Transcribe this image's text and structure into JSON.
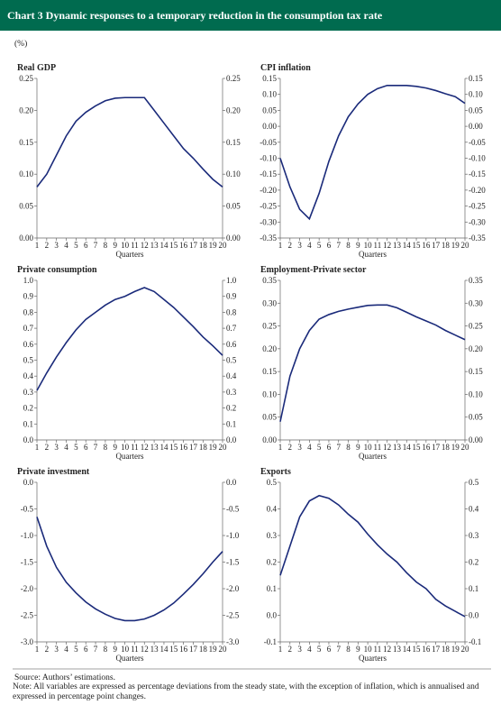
{
  "header": {
    "title": "Chart 3 Dynamic responses to a temporary reduction in the consumption tax rate",
    "unit": "(%)"
  },
  "footer": {
    "source": "Source: Authors’ estimations.",
    "note": "Note: All variables are expressed as percentage deviations from the steady state, with the exception of inflation, which is annualised and expressed in percentage point changes."
  },
  "chart_data": [
    {
      "type": "line",
      "title": "Real GDP",
      "xlabel": "Quarters",
      "color": "#1a2a7a",
      "x": [
        1,
        2,
        3,
        4,
        5,
        6,
        7,
        8,
        9,
        10,
        11,
        12,
        13,
        14,
        15,
        16,
        17,
        18,
        19,
        20
      ],
      "values": [
        0.08,
        0.1,
        0.13,
        0.16,
        0.183,
        0.197,
        0.207,
        0.215,
        0.219,
        0.22,
        0.22,
        0.22,
        0.2,
        0.18,
        0.16,
        0.14,
        0.125,
        0.108,
        0.092,
        0.08
      ],
      "xlim": [
        1,
        20
      ],
      "xticks": [
        1,
        2,
        3,
        4,
        5,
        6,
        7,
        8,
        9,
        10,
        11,
        12,
        13,
        14,
        15,
        16,
        17,
        18,
        19,
        20
      ],
      "ylim": [
        0,
        0.25
      ],
      "yticks": [
        {
          "value": 0,
          "label": "0.00"
        },
        0.05,
        {
          "value": 0.1,
          "label": "0.10"
        },
        0.15,
        {
          "value": 0.2,
          "label": "0.20"
        },
        0.25
      ]
    },
    {
      "type": "line",
      "title": "CPI inflation",
      "xlabel": "Quarters",
      "color": "#1a2a7a",
      "x": [
        1,
        2,
        3,
        4,
        5,
        6,
        7,
        8,
        9,
        10,
        11,
        12,
        13,
        14,
        15,
        16,
        17,
        18,
        19,
        20
      ],
      "values": [
        -0.1,
        -0.19,
        -0.26,
        -0.29,
        -0.21,
        -0.11,
        -0.03,
        0.03,
        0.07,
        0.1,
        0.118,
        0.128,
        0.128,
        0.128,
        0.125,
        0.12,
        0.112,
        0.102,
        0.093,
        0.072
      ],
      "xlim": [
        1,
        20
      ],
      "xticks": [
        1,
        2,
        3,
        4,
        5,
        6,
        7,
        8,
        9,
        10,
        11,
        12,
        13,
        14,
        15,
        16,
        17,
        18,
        19,
        20
      ],
      "ylim": [
        -0.35,
        0.15
      ],
      "yticks": [
        -0.35,
        {
          "value": -0.3,
          "label": "-0.30"
        },
        -0.25,
        {
          "value": -0.2,
          "label": "-0.20"
        },
        -0.15,
        {
          "value": -0.1,
          "label": "-0.10"
        },
        -0.05,
        {
          "value": 0,
          "label": "0.00"
        },
        0.05,
        {
          "value": 0.1,
          "label": "0.10"
        },
        0.15
      ]
    },
    {
      "type": "line",
      "title": "Private consumption",
      "xlabel": "Quarters",
      "color": "#1a2a7a",
      "x": [
        1,
        2,
        3,
        4,
        5,
        6,
        7,
        8,
        9,
        10,
        11,
        12,
        13,
        14,
        15,
        16,
        17,
        18,
        19,
        20
      ],
      "values": [
        0.31,
        0.42,
        0.52,
        0.61,
        0.69,
        0.755,
        0.8,
        0.845,
        0.88,
        0.9,
        0.93,
        0.955,
        0.93,
        0.88,
        0.83,
        0.77,
        0.71,
        0.645,
        0.59,
        0.53
      ],
      "xlim": [
        1,
        20
      ],
      "xticks": [
        1,
        2,
        3,
        4,
        5,
        6,
        7,
        8,
        9,
        10,
        11,
        12,
        13,
        14,
        15,
        16,
        17,
        18,
        19,
        20
      ],
      "ylim": [
        0,
        1
      ],
      "yticks": [
        {
          "value": 0,
          "label": "0.0"
        },
        0.1,
        0.2,
        0.3,
        0.4,
        0.5,
        0.6,
        0.7,
        0.8,
        0.9,
        {
          "value": 1,
          "label": "1.0"
        }
      ]
    },
    {
      "type": "line",
      "title": "Employment-Private sector",
      "xlabel": "Quarters",
      "color": "#1a2a7a",
      "x": [
        1,
        2,
        3,
        4,
        5,
        6,
        7,
        8,
        9,
        10,
        11,
        12,
        13,
        14,
        15,
        16,
        17,
        18,
        19,
        20
      ],
      "values": [
        0.04,
        0.14,
        0.2,
        0.24,
        0.265,
        0.275,
        0.282,
        0.287,
        0.291,
        0.295,
        0.296,
        0.296,
        0.29,
        0.28,
        0.27,
        0.261,
        0.252,
        0.24,
        0.23,
        0.22
      ],
      "xlim": [
        1,
        20
      ],
      "xticks": [
        1,
        2,
        3,
        4,
        5,
        6,
        7,
        8,
        9,
        10,
        11,
        12,
        13,
        14,
        15,
        16,
        17,
        18,
        19,
        20
      ],
      "ylim": [
        0,
        0.35
      ],
      "yticks": [
        {
          "value": 0,
          "label": "0.00"
        },
        0.05,
        {
          "value": 0.1,
          "label": "0.10"
        },
        0.15,
        {
          "value": 0.2,
          "label": "0.20"
        },
        0.25,
        {
          "value": 0.3,
          "label": "0.30"
        },
        0.35
      ]
    },
    {
      "type": "line",
      "title": "Private investment",
      "xlabel": "Quarters",
      "color": "#1a2a7a",
      "x": [
        1,
        2,
        3,
        4,
        5,
        6,
        7,
        8,
        9,
        10,
        11,
        12,
        13,
        14,
        15,
        16,
        17,
        18,
        19,
        20
      ],
      "values": [
        -0.65,
        -1.2,
        -1.6,
        -1.88,
        -2.08,
        -2.25,
        -2.38,
        -2.48,
        -2.56,
        -2.6,
        -2.6,
        -2.57,
        -2.5,
        -2.4,
        -2.27,
        -2.1,
        -1.92,
        -1.72,
        -1.5,
        -1.3
      ],
      "xlim": [
        1,
        20
      ],
      "xticks": [
        1,
        2,
        3,
        4,
        5,
        6,
        7,
        8,
        9,
        10,
        11,
        12,
        13,
        14,
        15,
        16,
        17,
        18,
        19,
        20
      ],
      "ylim": [
        -3,
        0
      ],
      "yticks": [
        {
          "value": -3,
          "label": "-3.0"
        },
        -2.5,
        {
          "value": -2,
          "label": "-2.0"
        },
        -1.5,
        {
          "value": -1,
          "label": "-1.0"
        },
        -0.5,
        {
          "value": 0,
          "label": "0.0"
        }
      ]
    },
    {
      "type": "line",
      "title": "Exports",
      "xlabel": "Quarters",
      "color": "#1a2a7a",
      "x": [
        1,
        2,
        3,
        4,
        5,
        6,
        7,
        8,
        9,
        10,
        11,
        12,
        13,
        14,
        15,
        16,
        17,
        18,
        19,
        20
      ],
      "values": [
        0.15,
        0.26,
        0.37,
        0.43,
        0.45,
        0.44,
        0.415,
        0.38,
        0.35,
        0.305,
        0.265,
        0.23,
        0.2,
        0.16,
        0.125,
        0.1,
        0.06,
        0.035,
        0.015,
        -0.005
      ],
      "xlim": [
        1,
        20
      ],
      "xticks": [
        1,
        2,
        3,
        4,
        5,
        6,
        7,
        8,
        9,
        10,
        11,
        12,
        13,
        14,
        15,
        16,
        17,
        18,
        19,
        20
      ],
      "ylim": [
        -0.1,
        0.5
      ],
      "yticks": [
        -0.1,
        {
          "value": 0,
          "label": "0.0"
        },
        0.1,
        0.2,
        0.3,
        0.4,
        0.5
      ]
    }
  ]
}
